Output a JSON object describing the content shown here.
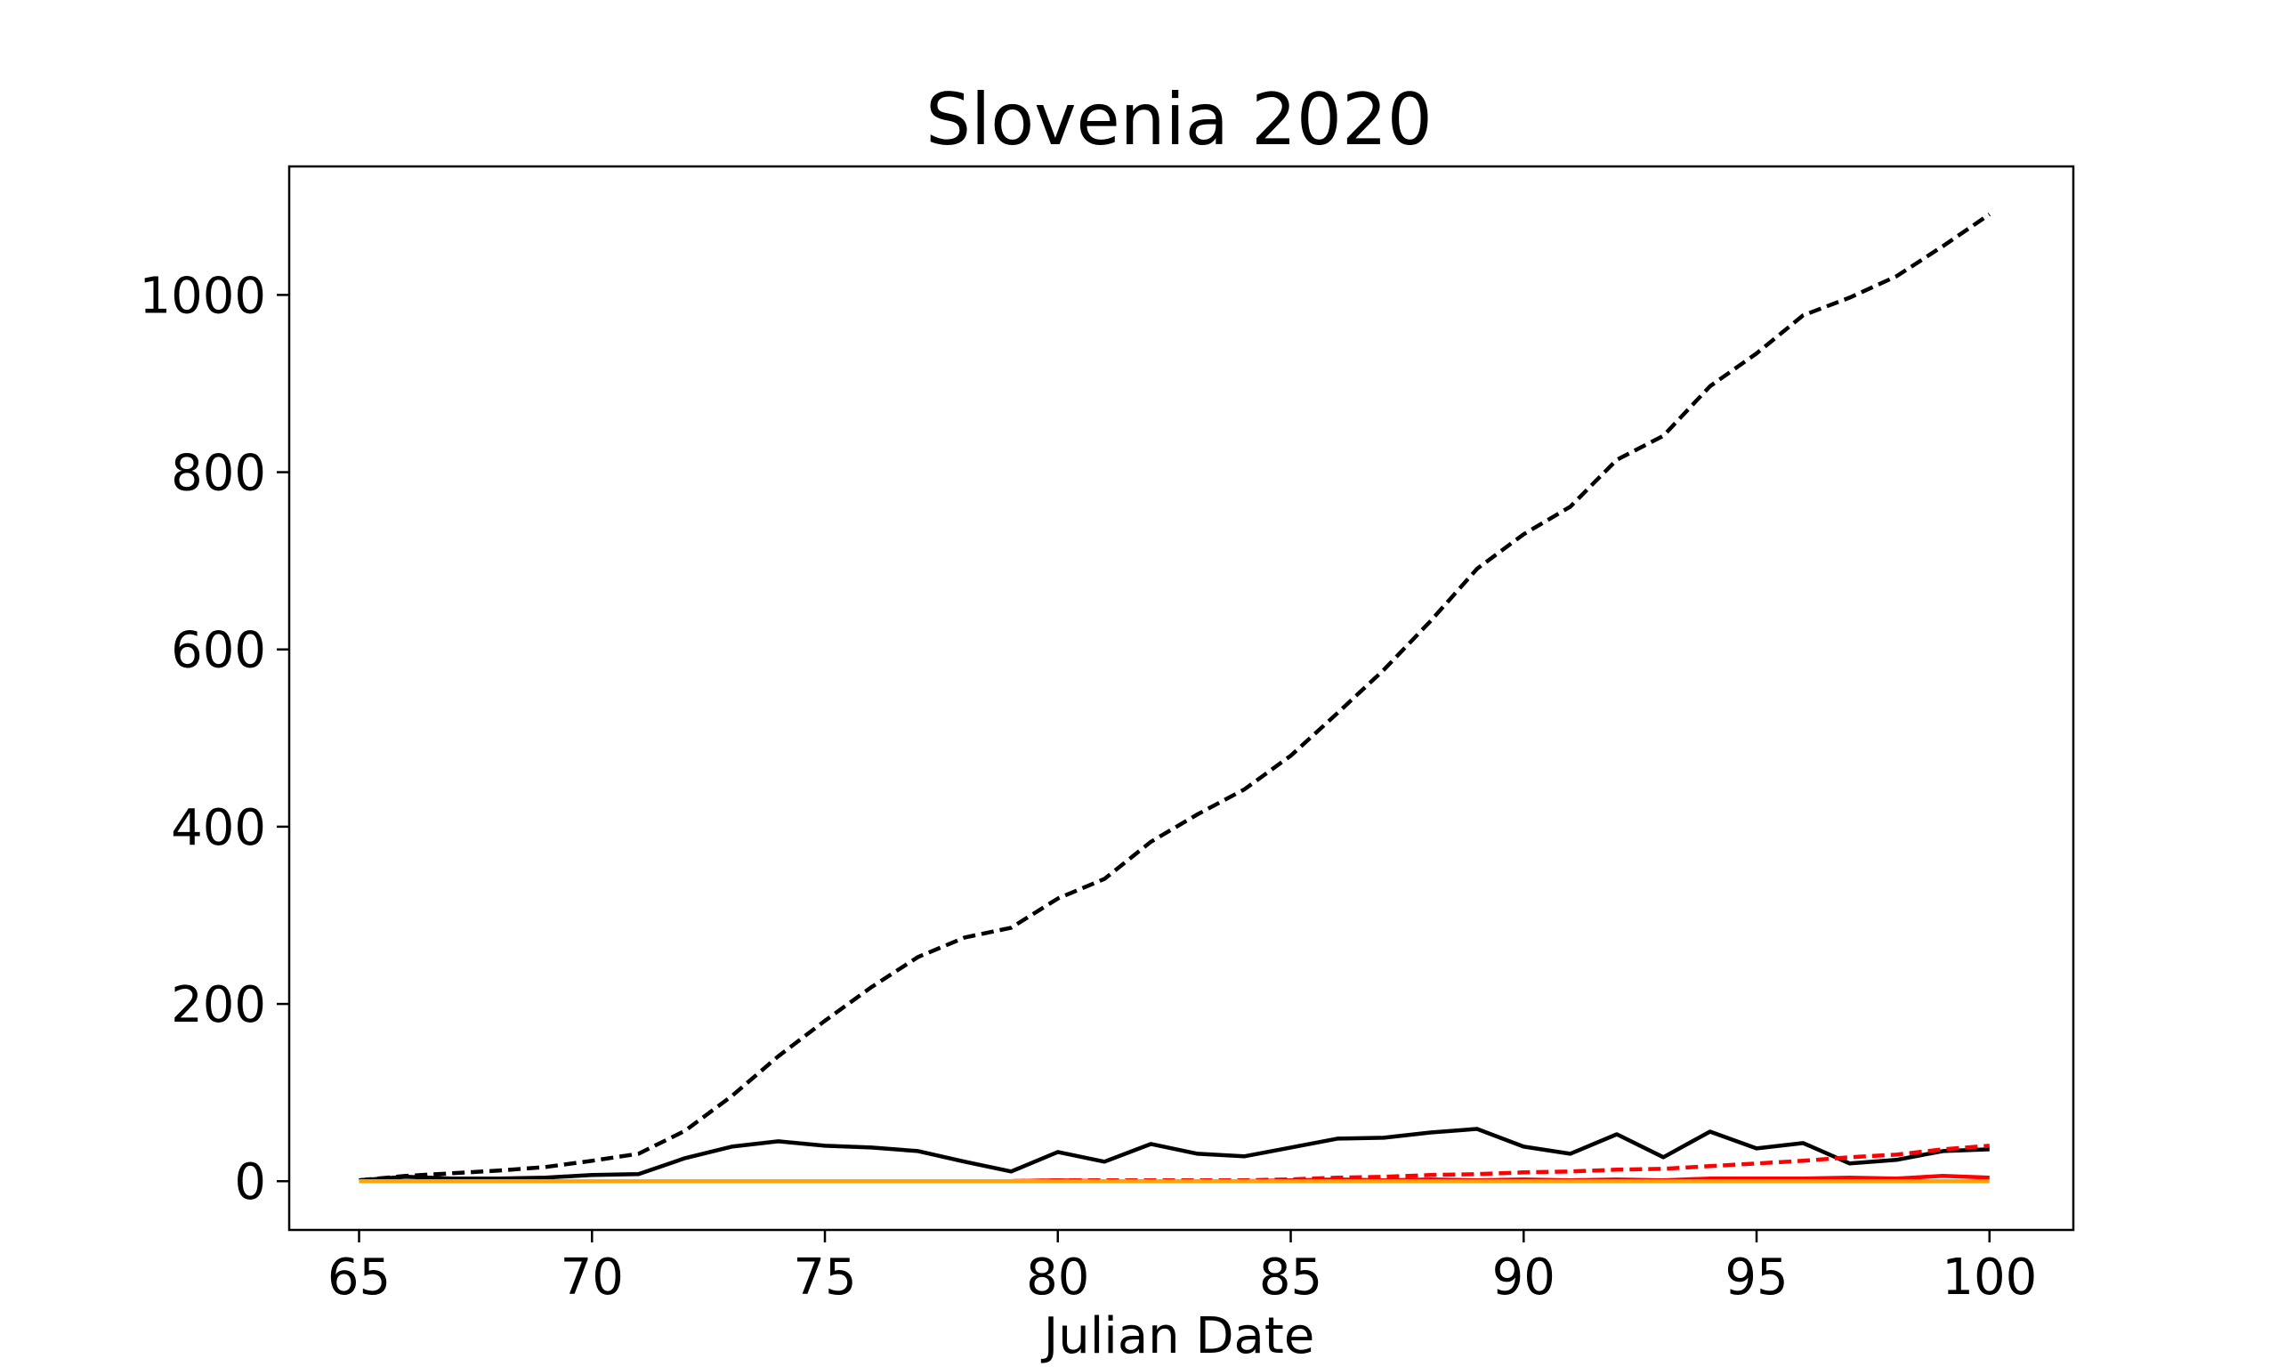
{
  "chart_data": {
    "type": "line",
    "title": "Slovenia 2020",
    "xlabel": "Julian Date",
    "ylabel": "",
    "xlim": [
      63.5,
      101.8
    ],
    "ylim": [
      -55,
      1145
    ],
    "xticks": [
      65,
      70,
      75,
      80,
      85,
      90,
      95,
      100
    ],
    "xtick_labels": [
      "65",
      "70",
      "75",
      "80",
      "85",
      "90",
      "95",
      "100"
    ],
    "yticks": [
      0,
      200,
      400,
      600,
      800,
      1000
    ],
    "ytick_labels": [
      "0",
      "200",
      "400",
      "600",
      "800",
      "1000"
    ],
    "grid": false,
    "legend": "none",
    "x": [
      65,
      66,
      67,
      68,
      69,
      70,
      71,
      72,
      73,
      74,
      75,
      76,
      77,
      78,
      79,
      80,
      81,
      82,
      83,
      84,
      85,
      86,
      87,
      88,
      89,
      90,
      91,
      92,
      93,
      94,
      95,
      96,
      97,
      98,
      99,
      100
    ],
    "series": [
      {
        "color": "#000000",
        "style": "dashed",
        "values": [
          1,
          6,
          9,
          12,
          16,
          23,
          31,
          57,
          96,
          141,
          181,
          219,
          253,
          275,
          286,
          319,
          341,
          383,
          414,
          442,
          480,
          528,
          577,
          632,
          691,
          730,
          761,
          814,
          841,
          897,
          934,
          977,
          997,
          1021,
          1055,
          1091
        ]
      },
      {
        "color": "#000000",
        "style": "solid",
        "values": [
          1,
          5,
          3,
          3,
          4,
          7,
          8,
          26,
          39,
          45,
          40,
          38,
          34,
          22,
          11,
          33,
          22,
          42,
          31,
          28,
          38,
          48,
          49,
          55,
          59,
          39,
          31,
          53,
          27,
          56,
          37,
          43,
          20,
          24,
          34,
          36
        ]
      },
      {
        "color": "#ff0000",
        "style": "dashed",
        "values": [
          0,
          0,
          0,
          0,
          0,
          0,
          0,
          0,
          0,
          0,
          0,
          0,
          0,
          0,
          0,
          1,
          1,
          1,
          1,
          1,
          2,
          4,
          5,
          7,
          8,
          10,
          11,
          13,
          14,
          17,
          20,
          23,
          27,
          30,
          36,
          40
        ]
      },
      {
        "color": "#ff0000",
        "style": "solid",
        "values": [
          0,
          0,
          0,
          0,
          0,
          0,
          0,
          0,
          0,
          0,
          0,
          0,
          0,
          0,
          0,
          1,
          0,
          0,
          0,
          0,
          1,
          2,
          1,
          2,
          1,
          2,
          1,
          2,
          1,
          3,
          3,
          3,
          4,
          3,
          6,
          4
        ]
      },
      {
        "color": "#ffa500",
        "style": "solid",
        "values": [
          0,
          0,
          0,
          0,
          0,
          0,
          0,
          0,
          0,
          0,
          0,
          0,
          0,
          0,
          0,
          0,
          0,
          0,
          0,
          0,
          0,
          0,
          0,
          0,
          0,
          0,
          0,
          0,
          0,
          0,
          0,
          0,
          0,
          0,
          0,
          0
        ]
      }
    ]
  }
}
